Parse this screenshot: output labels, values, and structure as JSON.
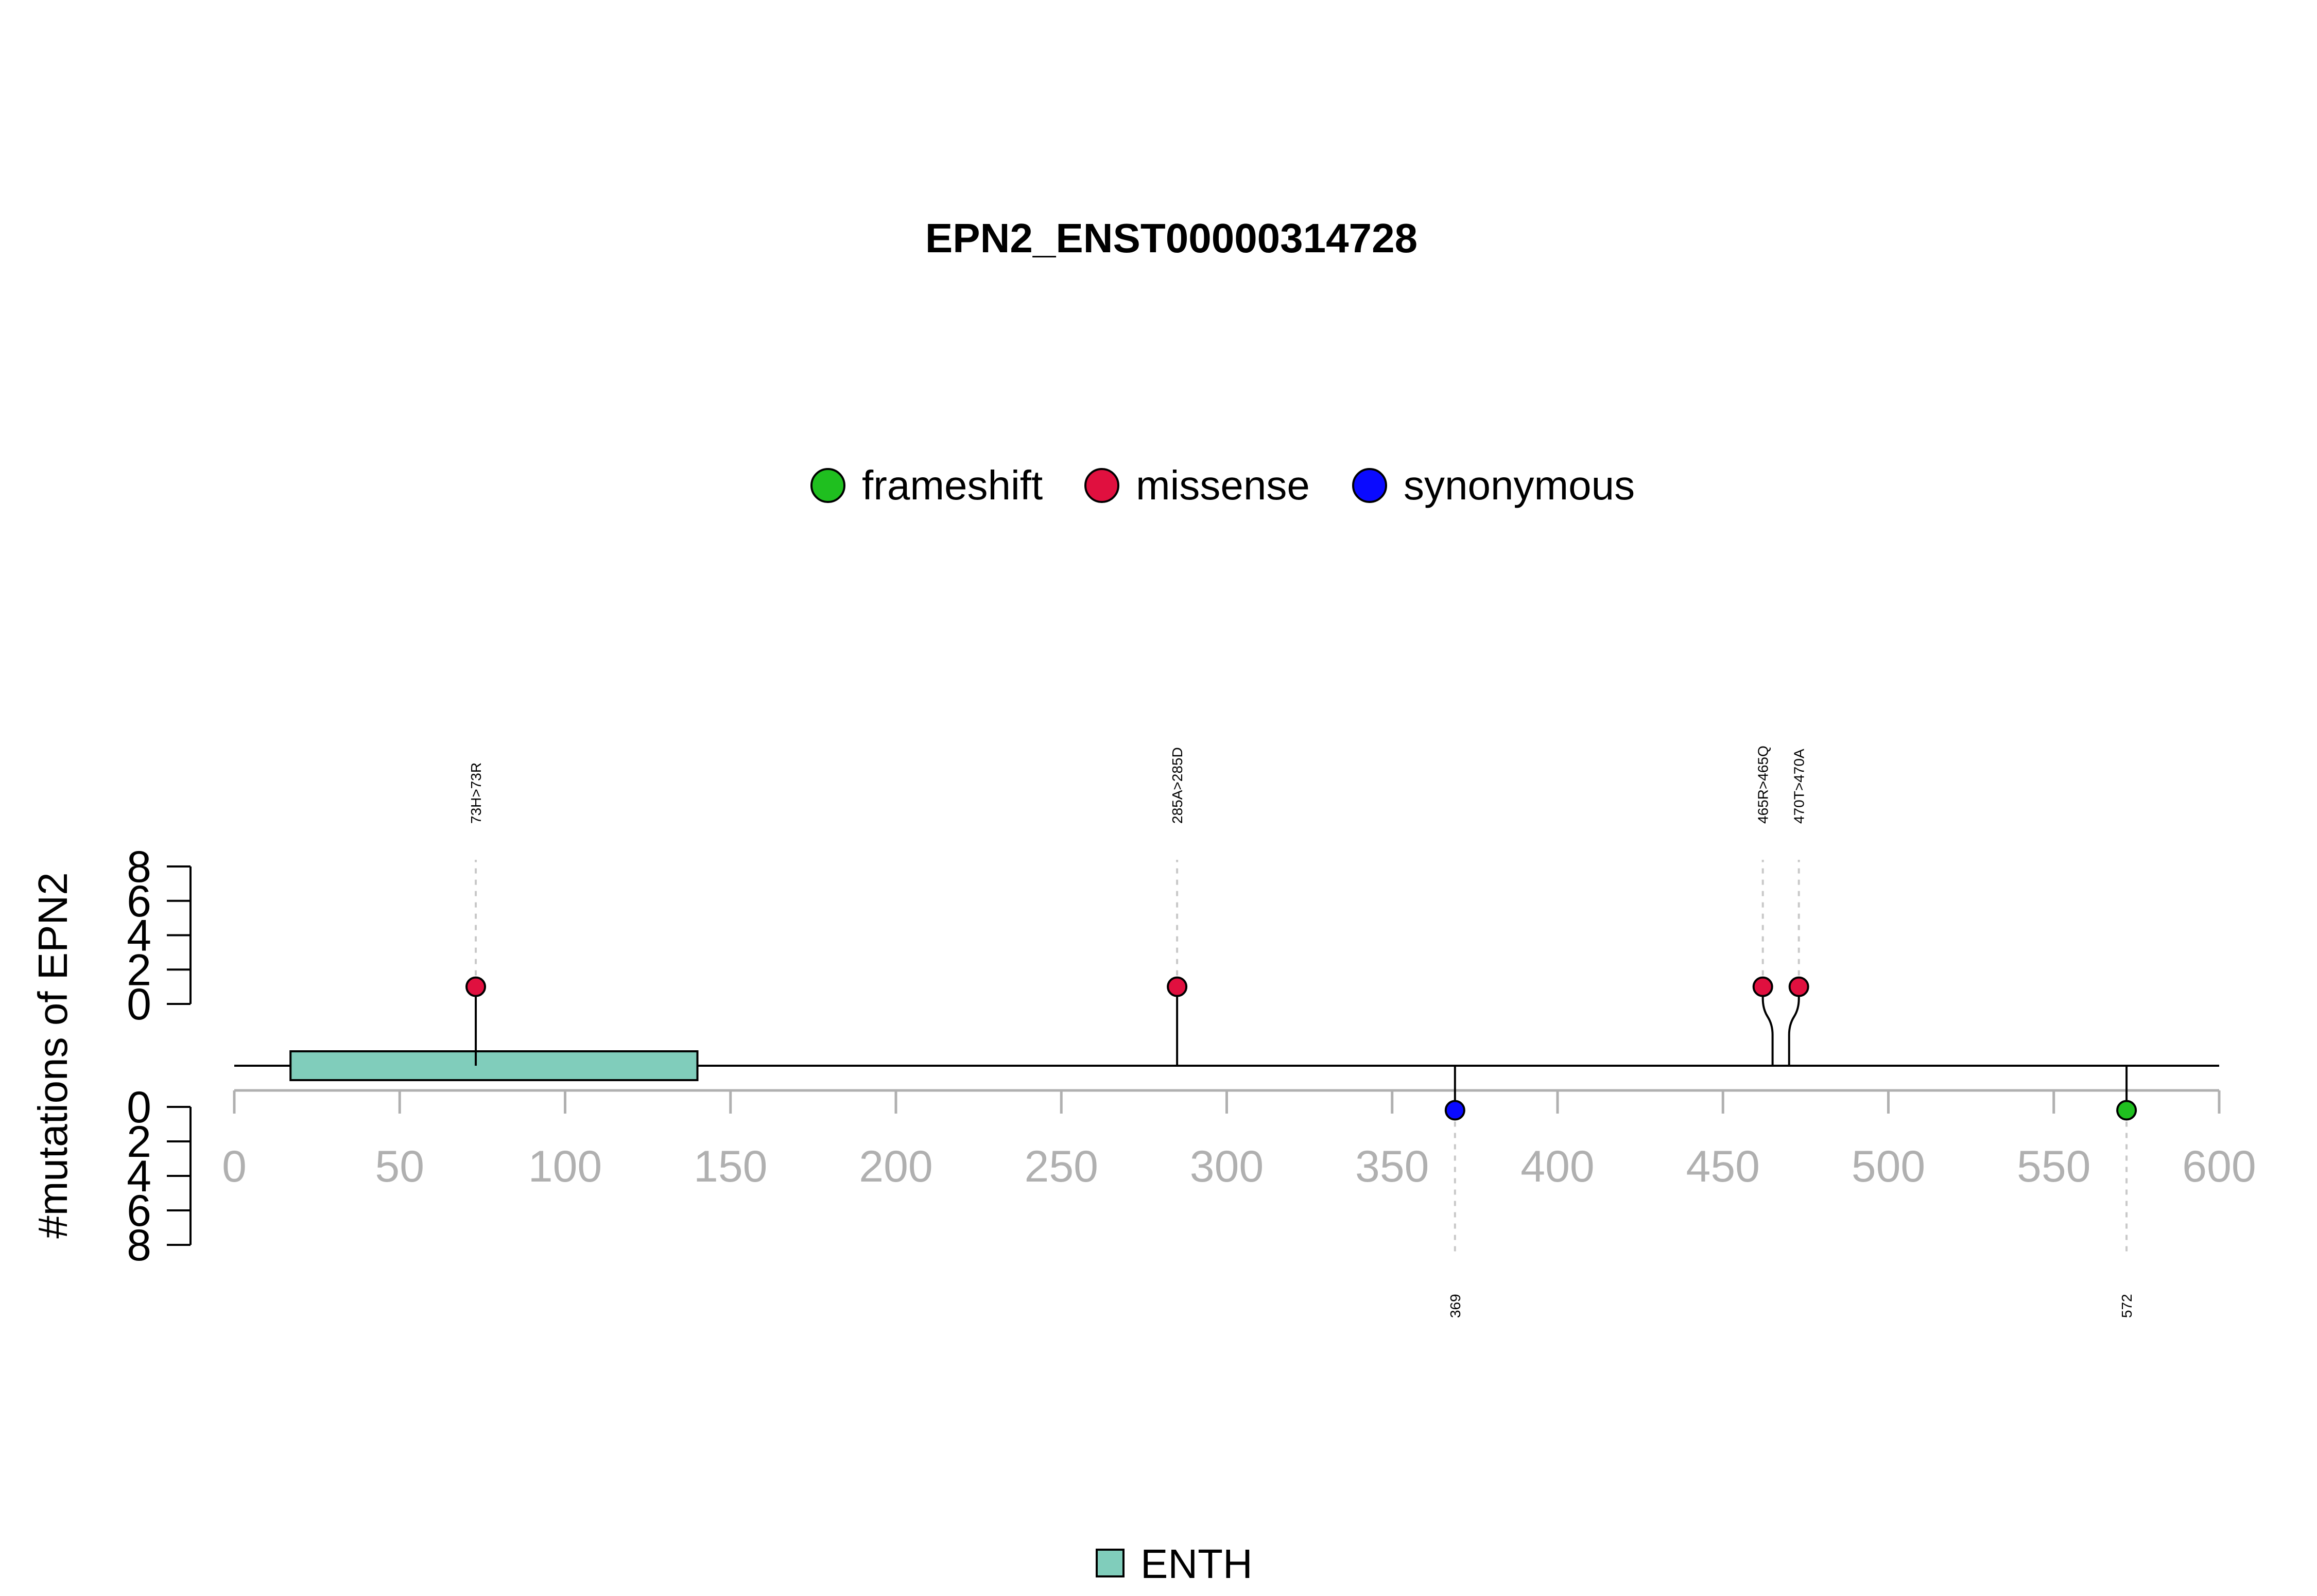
{
  "chart_data": {
    "type": "lollipop",
    "title": "EPN2_ENST00000314728",
    "ylabel": "#mutations of EPN2",
    "xlim": [
      0,
      600
    ],
    "x_ticks": [
      0,
      50,
      100,
      150,
      200,
      250,
      300,
      350,
      400,
      450,
      500,
      550,
      600
    ],
    "y_ticks": [
      0,
      2,
      4,
      6,
      8
    ],
    "ylim": [
      0,
      8
    ],
    "protein_length": 600,
    "legend": [
      {
        "label": "frameshift",
        "color": "#1fbf1f"
      },
      {
        "label": "missense",
        "color": "#e0103f"
      },
      {
        "label": "synonymous",
        "color": "#0a0aff"
      }
    ],
    "domains": [
      {
        "name": "ENTH",
        "start": 17,
        "end": 140,
        "color": "#80cdbb"
      }
    ],
    "mutations": [
      {
        "position": 73,
        "label": "73H>73R",
        "type": "missense",
        "count": 1,
        "side": "top"
      },
      {
        "position": 285,
        "label": "285A>285D",
        "type": "missense",
        "count": 1,
        "side": "top"
      },
      {
        "position": 465,
        "label": "465R>465Q",
        "type": "missense",
        "count": 1,
        "side": "top"
      },
      {
        "position": 470,
        "label": "470T>470A",
        "type": "missense",
        "count": 1,
        "side": "top"
      },
      {
        "position": 369,
        "label": "369",
        "type": "synonymous",
        "count": 1,
        "side": "bottom"
      },
      {
        "position": 572,
        "label": "572",
        "type": "frameshift",
        "count": 1,
        "side": "bottom"
      }
    ]
  }
}
